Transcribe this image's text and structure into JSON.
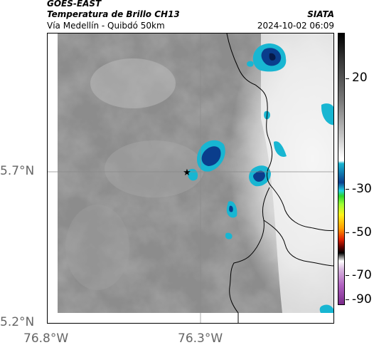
{
  "header": {
    "satellite": "GOES-EAST",
    "product": "Temperatura de Brillo CH13",
    "region": "Vía Medellín - Quibdó 50km",
    "agency": "SIATA",
    "datetime": "2024-10-02 06:09"
  },
  "map": {
    "x_ticks": [
      "76.8°W",
      "76.3°W"
    ],
    "y_ticks": [
      "5.7°N",
      "5.2°N"
    ],
    "marker": "station-star",
    "background_color": "#8a8a8a",
    "cold_cloud_color": "#14b4d0",
    "deep_cloud_color": "#0a3d8c",
    "border_color": "#000000"
  },
  "colorbar": {
    "labels": [
      "20",
      "-30",
      "-50",
      "-70",
      "-90"
    ]
  }
}
